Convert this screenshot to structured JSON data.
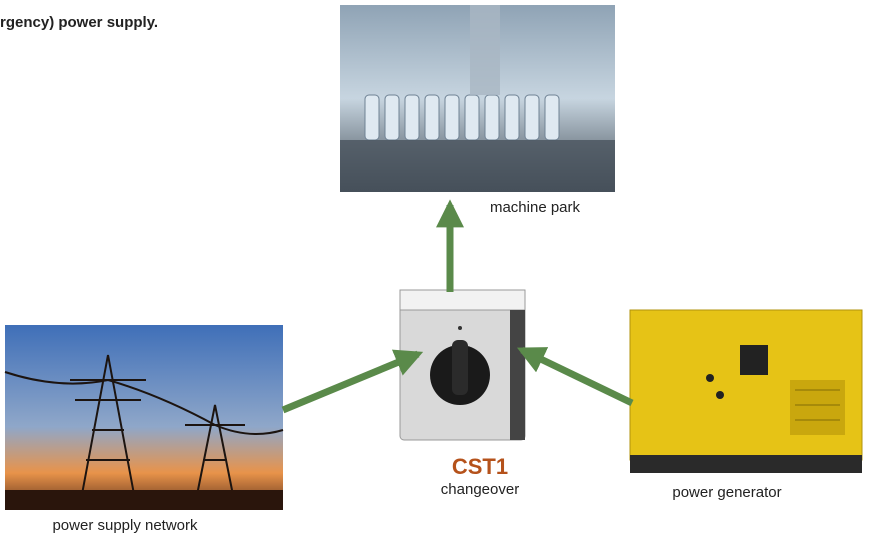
{
  "header": {
    "text": "rgency) power supply."
  },
  "nodes": [
    {
      "label": "machine park"
    },
    {
      "title": "CST1",
      "label": "changeover"
    },
    {
      "label": "power supply network"
    },
    {
      "label": "power generator"
    }
  ]
}
